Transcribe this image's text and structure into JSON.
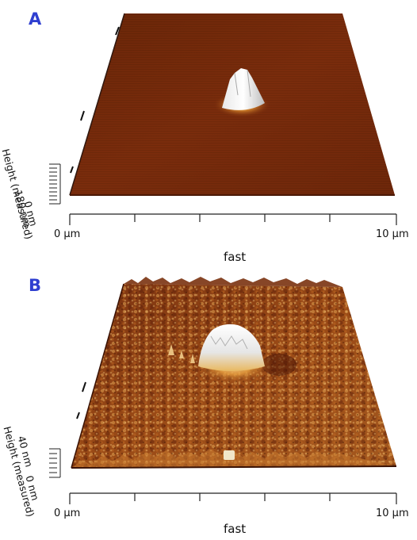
{
  "panels": [
    {
      "letter": "A",
      "x_start": "0 µm",
      "x_end": "10 µm",
      "x_axis": "fast",
      "z_max": "180 nm",
      "z_min": "0 nm",
      "z_axis": "Height (measured)"
    },
    {
      "letter": "B",
      "x_start": "0 µm",
      "x_end": "10 µm",
      "x_axis": "fast",
      "z_max": "40 nm",
      "z_min": "0 nm",
      "z_axis": "Height (measured)"
    }
  ],
  "colors": {
    "surface_dark": "#5a1c08",
    "surface_mid": "#8a3a12",
    "surface_light": "#c8782a",
    "peak": "#f0f0f0",
    "label_letter": "#2f3fd0"
  }
}
